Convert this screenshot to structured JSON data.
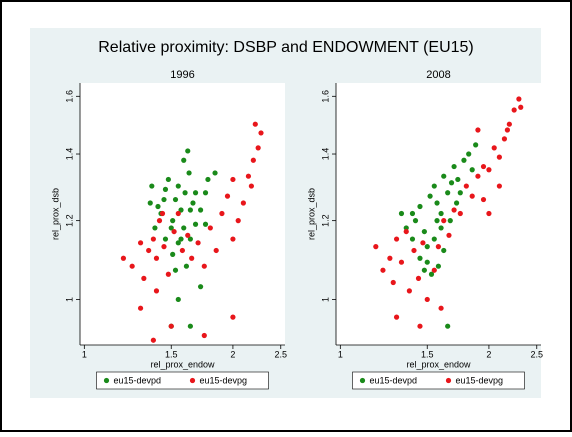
{
  "title": "Relative proximity: DSBP and ENDOWMENT (EU15)",
  "chart_data": [
    {
      "type": "scatter",
      "title": "1996",
      "x_label": "rel_prox_endow",
      "y_label": "rel_prox_dsb",
      "xlim": [
        0.98,
        2.55
      ],
      "ylim": [
        0.9,
        1.65
      ],
      "xticks": [
        1,
        1.5,
        2,
        2.5
      ],
      "yticks": [
        1,
        1.2,
        1.4,
        1.6
      ],
      "log_x": true,
      "log_y": true,
      "series": [
        {
          "name": "eu15-devpd",
          "color": "#1a8a1a",
          "x": [
            1.37,
            1.41,
            1.43,
            1.45,
            1.46,
            1.48,
            1.5,
            1.51,
            1.53,
            1.55,
            1.57,
            1.6,
            1.63,
            1.64,
            1.66,
            1.68,
            1.72,
            1.76,
            1.78,
            1.84,
            1.62,
            1.59,
            1.55,
            1.51,
            1.57,
            1.59,
            1.64,
            1.36,
            1.39,
            1.46,
            1.53,
            1.55,
            1.64,
            1.72,
            1.5,
            1.61,
            1.68,
            1.76
          ],
          "y": [
            1.3,
            1.24,
            1.22,
            1.26,
            1.29,
            1.32,
            1.18,
            1.2,
            1.26,
            1.3,
            1.23,
            1.28,
            1.34,
            1.23,
            1.25,
            1.28,
            1.23,
            1.28,
            1.32,
            1.34,
            1.41,
            1.38,
            1.14,
            1.11,
            1.15,
            1.18,
            1.15,
            1.25,
            1.18,
            1.15,
            1.07,
            1.0,
            0.94,
            1.03,
            0.94,
            1.08,
            1.19,
            1.19
          ]
        },
        {
          "name": "eu15-devpg",
          "color": "#e8161b",
          "x": [
            1.2,
            1.25,
            1.3,
            1.32,
            1.35,
            1.38,
            1.4,
            1.42,
            1.45,
            1.48,
            1.52,
            1.55,
            1.58,
            1.62,
            1.65,
            1.7,
            1.75,
            1.8,
            1.85,
            1.9,
            1.95,
            2.0,
            2.05,
            2.1,
            2.15,
            2.2,
            2.25,
            2.28,
            2.22,
            2.18,
            2.0,
            1.4,
            1.3,
            1.5,
            1.75,
            2.0,
            1.38,
            1.44
          ],
          "y": [
            1.1,
            1.08,
            1.14,
            1.05,
            1.12,
            1.15,
            1.1,
            1.2,
            1.13,
            1.06,
            1.17,
            1.22,
            1.12,
            1.16,
            1.1,
            1.14,
            1.08,
            1.18,
            1.12,
            1.22,
            1.27,
            1.15,
            1.2,
            1.25,
            1.33,
            1.38,
            1.42,
            1.47,
            1.5,
            1.3,
            1.32,
            1.02,
            0.98,
            0.94,
            0.92,
            0.96,
            0.91,
            1.22
          ]
        }
      ],
      "legend": "bottom"
    },
    {
      "type": "scatter",
      "title": "2008",
      "x_label": "rel_prox_endow",
      "y_label": "rel_prox_dsb",
      "xlim": [
        0.98,
        2.55
      ],
      "ylim": [
        0.9,
        1.65
      ],
      "xticks": [
        1,
        1.5,
        2,
        2.5
      ],
      "yticks": [
        1,
        1.2,
        1.4,
        1.6
      ],
      "log_x": true,
      "log_y": true,
      "series": [
        {
          "name": "eu15-devpd",
          "color": "#1a8a1a",
          "x": [
            1.33,
            1.36,
            1.4,
            1.42,
            1.45,
            1.48,
            1.5,
            1.52,
            1.55,
            1.57,
            1.6,
            1.62,
            1.65,
            1.68,
            1.7,
            1.73,
            1.78,
            1.82,
            1.85,
            1.88,
            1.6,
            1.55,
            1.5,
            1.58,
            1.62,
            1.67,
            1.72,
            1.45,
            1.53,
            1.65,
            1.4,
            1.57,
            1.75,
            1.48
          ],
          "y": [
            1.22,
            1.18,
            1.15,
            1.2,
            1.24,
            1.17,
            1.13,
            1.27,
            1.3,
            1.25,
            1.22,
            1.33,
            1.28,
            1.31,
            1.36,
            1.32,
            1.38,
            1.4,
            1.35,
            1.43,
            1.18,
            1.15,
            1.09,
            1.08,
            1.12,
            1.2,
            1.25,
            1.1,
            1.06,
            0.94,
            1.22,
            1.2,
            1.28,
            1.07
          ]
        },
        {
          "name": "eu15-devpg",
          "color": "#e8161b",
          "x": [
            1.18,
            1.22,
            1.26,
            1.28,
            1.3,
            1.33,
            1.36,
            1.38,
            1.41,
            1.44,
            1.47,
            1.5,
            1.55,
            1.58,
            1.62,
            1.66,
            1.7,
            1.75,
            1.8,
            1.85,
            1.9,
            1.95,
            2.0,
            2.05,
            2.1,
            2.15,
            2.2,
            2.25,
            2.3,
            2.32,
            2.18,
            1.9,
            1.95,
            2.1,
            1.3,
            1.45,
            1.6,
            2.0
          ],
          "y": [
            1.13,
            1.07,
            1.1,
            1.04,
            1.15,
            1.09,
            1.17,
            1.02,
            1.12,
            1.05,
            1.14,
            1.0,
            1.07,
            1.13,
            1.2,
            1.16,
            1.23,
            1.22,
            1.3,
            1.27,
            1.33,
            1.36,
            1.35,
            1.42,
            1.39,
            1.45,
            1.5,
            1.55,
            1.59,
            1.56,
            1.48,
            1.48,
            1.26,
            1.3,
            0.96,
            0.94,
            0.98,
            1.22
          ]
        }
      ],
      "legend": "bottom"
    }
  ]
}
